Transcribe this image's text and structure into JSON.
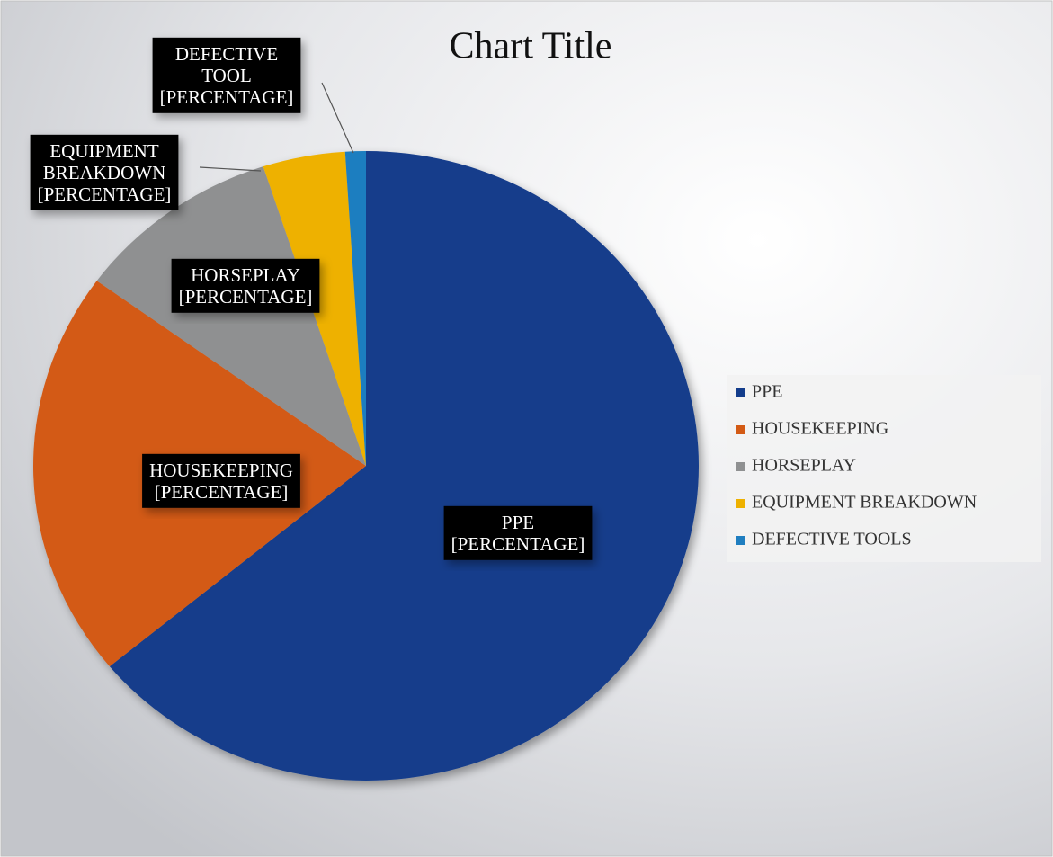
{
  "chart_data": {
    "type": "pie",
    "title": "Chart Title",
    "categories": [
      "PPE",
      "HOUSEKEEPING",
      "HORSEPLAY",
      "EQUIPMENT BREAKDOWN",
      "DEFECTIVE TOOLS"
    ],
    "values": [
      64,
      21,
      10,
      4,
      1
    ],
    "colors": [
      "#133c8b",
      "#d35a14",
      "#8f9091",
      "#eeb100",
      "#1f7ec0"
    ],
    "data_labels": [
      [
        "PPE",
        "[PERCENTAGE]"
      ],
      [
        "HOUSEKEEPING",
        "[PERCENTAGE]"
      ],
      [
        "HORSEPLAY",
        "[PERCENTAGE]"
      ],
      [
        "EQUIPMENT",
        "BREAKDOWN",
        "[PERCENTAGE]"
      ],
      [
        "DEFECTIVE",
        "TOOL",
        "[PERCENTAGE]"
      ]
    ],
    "legend": "right"
  }
}
